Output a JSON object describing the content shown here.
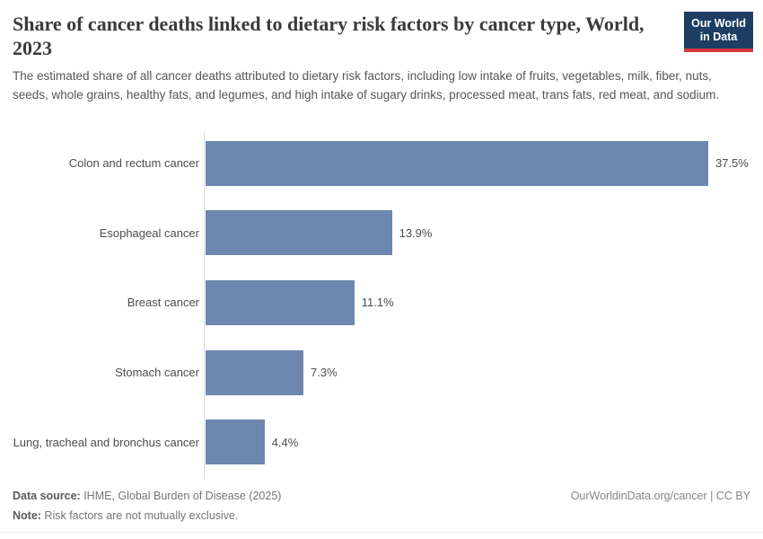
{
  "header": {
    "title": "Share of cancer deaths linked to dietary risk factors by cancer type, World, 2023",
    "subtitle": "The estimated share of all cancer deaths attributed to dietary risk factors, including low intake of fruits, vegetables, milk, fiber, nuts, seeds, whole grains, healthy fats, and legumes, and high intake of sugary drinks, processed meat, trans fats, red meat, and sodium.",
    "logo": {
      "line1": "Our World",
      "line2": "in Data"
    }
  },
  "chart_data": {
    "type": "bar",
    "orientation": "horizontal",
    "title": "Share of cancer deaths linked to dietary risk factors by cancer type, World, 2023",
    "categories": [
      "Colon and rectum cancer",
      "Esophageal cancer",
      "Breast cancer",
      "Stomach cancer",
      "Lung, tracheal and bronchus cancer"
    ],
    "values": [
      37.5,
      13.9,
      11.1,
      7.3,
      4.4
    ],
    "value_labels": [
      "37.5%",
      "13.9%",
      "11.1%",
      "7.3%",
      "4.4%"
    ],
    "xlabel": "",
    "ylabel": "",
    "xlim": [
      0,
      37.5
    ],
    "grid": false,
    "legend": "none",
    "bar_color": "#6d87ae"
  },
  "footer": {
    "datasource_label": "Data source:",
    "datasource_value": " IHME, Global Burden of Disease (2025)",
    "note_label": "Note:",
    "note_value": " Risk factors are not mutually exclusive.",
    "credit": "OurWorldinData.org/cancer | CC BY"
  },
  "colors": {
    "bar": "#6d87ae",
    "logo_background": "#1d3d63",
    "logo_accent_red": "#d7383f",
    "axis_line": "#dcdcdc",
    "title_text": "#3a3a3a",
    "body_text": "#565656"
  }
}
